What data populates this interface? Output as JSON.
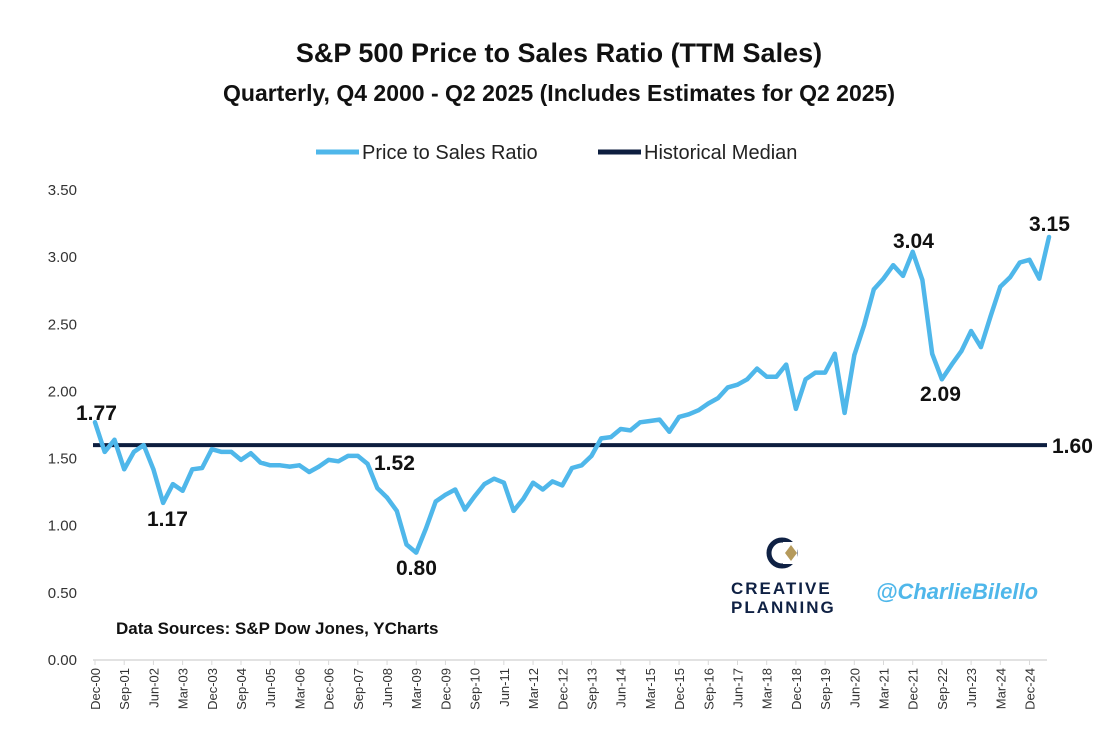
{
  "chart_data": {
    "type": "line",
    "title": "S&P 500 Price to Sales Ratio (TTM Sales)",
    "subtitle": "Quarterly, Q4 2000 - Q2 2025 (Includes Estimates for Q2 2025)",
    "xlabel": "",
    "ylabel": "",
    "ylim": [
      0,
      3.5
    ],
    "yticks": [
      "0.00",
      "0.50",
      "1.00",
      "1.50",
      "2.00",
      "2.50",
      "3.00",
      "3.50"
    ],
    "grid": false,
    "legend_position": "top-center",
    "xtick_labels": [
      "Dec-00",
      "Sep-01",
      "Jun-02",
      "Mar-03",
      "Dec-03",
      "Sep-04",
      "Jun-05",
      "Mar-06",
      "Dec-06",
      "Sep-07",
      "Jun-08",
      "Mar-09",
      "Dec-09",
      "Sep-10",
      "Jun-11",
      "Mar-12",
      "Dec-12",
      "Sep-13",
      "Jun-14",
      "Mar-15",
      "Dec-15",
      "Sep-16",
      "Jun-17",
      "Mar-18",
      "Dec-18",
      "Sep-19",
      "Jun-20",
      "Mar-21",
      "Dec-21",
      "Sep-22",
      "Jun-23",
      "Mar-24",
      "Dec-24"
    ],
    "series": [
      {
        "name": "Price to Sales Ratio",
        "color": "#4fb7ea",
        "values": [
          1.77,
          1.55,
          1.64,
          1.42,
          1.55,
          1.6,
          1.42,
          1.17,
          1.31,
          1.26,
          1.42,
          1.43,
          1.57,
          1.55,
          1.55,
          1.49,
          1.54,
          1.47,
          1.45,
          1.45,
          1.44,
          1.45,
          1.4,
          1.44,
          1.49,
          1.48,
          1.52,
          1.52,
          1.46,
          1.28,
          1.21,
          1.11,
          0.86,
          0.8,
          0.98,
          1.18,
          1.23,
          1.27,
          1.12,
          1.22,
          1.31,
          1.35,
          1.32,
          1.11,
          1.2,
          1.32,
          1.27,
          1.33,
          1.3,
          1.43,
          1.45,
          1.52,
          1.65,
          1.66,
          1.72,
          1.71,
          1.77,
          1.78,
          1.79,
          1.7,
          1.81,
          1.83,
          1.86,
          1.91,
          1.95,
          2.03,
          2.05,
          2.09,
          2.17,
          2.11,
          2.11,
          2.2,
          1.87,
          2.09,
          2.14,
          2.14,
          2.28,
          1.84,
          2.27,
          2.49,
          2.76,
          2.84,
          2.94,
          2.86,
          3.04,
          2.83,
          2.28,
          2.09,
          2.2,
          2.3,
          2.45,
          2.33,
          2.56,
          2.78,
          2.85,
          2.96,
          2.98,
          2.84,
          3.15
        ]
      },
      {
        "name": "Historical Median",
        "color": "#0d1e3f",
        "values": [
          1.6
        ]
      }
    ],
    "annotations": [
      "1.77",
      "1.17",
      "1.52",
      "0.80",
      "3.04",
      "2.09",
      "3.15",
      "1.60"
    ]
  },
  "source_text": "Data Sources: S&P Dow Jones, YCharts",
  "branding": {
    "logo_line1": "CREATIVE",
    "logo_line2": "PLANNING",
    "handle": "@CharlieBilello"
  }
}
